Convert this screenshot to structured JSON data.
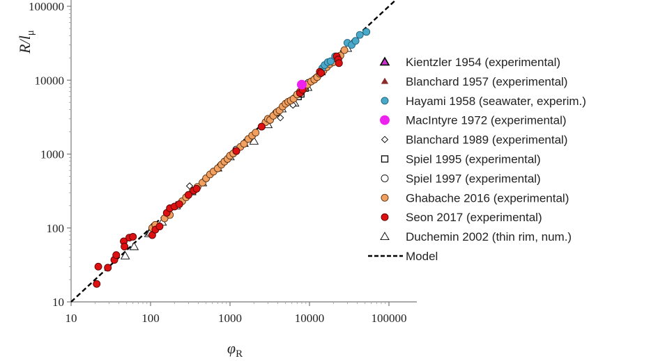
{
  "chart_data": {
    "type": "scatter",
    "xscale": "log",
    "yscale": "log",
    "xlim": [
      10,
      100000
    ],
    "ylim": [
      10,
      100000
    ],
    "xticks": [
      "10",
      "100",
      "1000",
      "10000",
      "100000"
    ],
    "yticks": [
      "10",
      "100",
      "1000",
      "10000",
      "100000"
    ],
    "xticks_values": [
      10,
      100,
      1000,
      10000,
      100000
    ],
    "yticks_values": [
      10,
      100,
      1000,
      10000,
      100000
    ],
    "xlabel": {
      "main": "φ",
      "sub": "R"
    },
    "ylabel": {
      "main": "R/l",
      "sub": "μ"
    },
    "grid": false,
    "legend_position": "right",
    "model": {
      "name": "Model",
      "slope": 1,
      "coef": 1
    },
    "series": [
      {
        "name": "Kientzler 1954 (experimental)",
        "marker": "triangle",
        "fill": "#cc33cc",
        "stroke": "#000000",
        "points": []
      },
      {
        "name": "Blanchard 1957 (experimental)",
        "marker": "triangle-small",
        "fill": "#8b2a2a",
        "stroke": "#8b2a2a",
        "points": []
      },
      {
        "name": "Hayami 1958 (seawater, experim.)",
        "marker": "circle",
        "fill": "#4aa8c8",
        "stroke": "#1d5f7a",
        "points": [
          [
            14500,
            14500
          ],
          [
            15500,
            16000
          ],
          [
            17000,
            17500
          ],
          [
            18500,
            18000
          ],
          [
            21000,
            21000
          ],
          [
            30000,
            32000
          ],
          [
            34000,
            30000
          ],
          [
            38000,
            34000
          ],
          [
            43000,
            41000
          ],
          [
            52000,
            45000
          ]
        ]
      },
      {
        "name": "MacIntyre 1972 (experimental)",
        "marker": "circle-large",
        "fill": "#ee22ee",
        "stroke": "#ee22ee",
        "points": [
          [
            8000,
            8700
          ]
        ]
      },
      {
        "name": "Blanchard 1989 (experimental)",
        "marker": "diamond",
        "fill": "#ffffff",
        "stroke": "#000000",
        "points": [
          [
            310,
            370
          ],
          [
            1900,
            1700
          ],
          [
            4300,
            3100
          ],
          [
            6200,
            4600
          ],
          [
            9000,
            8100
          ]
        ]
      },
      {
        "name": "Spiel 1995 (experimental)",
        "marker": "square",
        "fill": "#ffffff",
        "stroke": "#000000",
        "points": [
          [
            7200,
            6000
          ],
          [
            7800,
            6500
          ],
          [
            8800,
            7800
          ]
        ]
      },
      {
        "name": "Spiel 1997 (experimental)",
        "marker": "circle-open",
        "fill": "#ffffff",
        "stroke": "#000000",
        "points": [
          [
            110,
            105
          ],
          [
            1200,
            1150
          ],
          [
            3800,
            3600
          ],
          [
            9700,
            9200
          ]
        ]
      },
      {
        "name": "Ghabache 2016 (experimental)",
        "marker": "circle",
        "fill": "#f0a060",
        "stroke": "#5a3010",
        "points": [
          [
            105,
            100
          ],
          [
            115,
            110
          ],
          [
            150,
            135
          ],
          [
            175,
            150
          ],
          [
            250,
            230
          ],
          [
            280,
            260
          ],
          [
            340,
            320
          ],
          [
            390,
            360
          ],
          [
            450,
            410
          ],
          [
            500,
            470
          ],
          [
            560,
            530
          ],
          [
            620,
            580
          ],
          [
            700,
            640
          ],
          [
            780,
            720
          ],
          [
            850,
            790
          ],
          [
            930,
            860
          ],
          [
            1000,
            950
          ],
          [
            1100,
            1020
          ],
          [
            1200,
            1100
          ],
          [
            1350,
            1250
          ],
          [
            1500,
            1380
          ],
          [
            1700,
            1600
          ],
          [
            1900,
            1780
          ],
          [
            2100,
            1950
          ],
          [
            2500,
            2350
          ],
          [
            2800,
            2700
          ],
          [
            3000,
            3000
          ],
          [
            3200,
            2900
          ],
          [
            3500,
            3300
          ],
          [
            3900,
            3700
          ],
          [
            4200,
            3900
          ],
          [
            4600,
            4400
          ],
          [
            5000,
            4800
          ],
          [
            5400,
            5100
          ],
          [
            5800,
            5300
          ],
          [
            6300,
            5600
          ],
          [
            7000,
            6400
          ],
          [
            7600,
            7000
          ],
          [
            8500,
            7700
          ],
          [
            9400,
            8700
          ],
          [
            10500,
            9600
          ],
          [
            11500,
            10200
          ],
          [
            12500,
            11000
          ],
          [
            13500,
            12200
          ],
          [
            15000,
            13500
          ],
          [
            16500,
            15000
          ],
          [
            18000,
            16500
          ],
          [
            20000,
            17500
          ],
          [
            22000,
            19500
          ],
          [
            24500,
            21500
          ],
          [
            27500,
            25500
          ]
        ]
      },
      {
        "name": "Seon 2017 (experimental)",
        "marker": "circle",
        "fill": "#dd1111",
        "stroke": "#550000",
        "points": [
          [
            21,
            17.5
          ],
          [
            22,
            30
          ],
          [
            29,
            29
          ],
          [
            35,
            37
          ],
          [
            37,
            43
          ],
          [
            46,
            66
          ],
          [
            47,
            56
          ],
          [
            54,
            74
          ],
          [
            60,
            76
          ],
          [
            105,
            80
          ],
          [
            115,
            95
          ],
          [
            130,
            105
          ],
          [
            160,
            160
          ],
          [
            175,
            185
          ],
          [
            200,
            195
          ],
          [
            230,
            210
          ],
          [
            300,
            280
          ],
          [
            350,
            320
          ],
          [
            380,
            340
          ],
          [
            1200,
            1100
          ],
          [
            2500,
            2350
          ],
          [
            7600,
            6700
          ],
          [
            8200,
            7400
          ],
          [
            13500,
            13000
          ],
          [
            14000,
            12500
          ],
          [
            22000,
            21000
          ],
          [
            23000,
            19000
          ],
          [
            23500,
            17000
          ]
        ]
      },
      {
        "name": "Duchemin 2002 (thin rim, num.)",
        "marker": "triangle-open",
        "fill": "#ffffff",
        "stroke": "#000000",
        "points": [
          [
            48,
            42
          ],
          [
            62,
            56
          ],
          [
            95,
            84
          ],
          [
            100,
            88
          ],
          [
            140,
            120
          ],
          [
            210,
            200
          ],
          [
            330,
            310
          ],
          [
            450,
            410
          ],
          [
            700,
            650
          ],
          [
            1000,
            920
          ],
          [
            1500,
            1400
          ],
          [
            2000,
            1500
          ],
          [
            3000,
            2500
          ],
          [
            4500,
            4100
          ],
          [
            6500,
            4900
          ],
          [
            9500,
            8000
          ],
          [
            14000,
            13000
          ],
          [
            20000,
            18000
          ],
          [
            30000,
            27000
          ]
        ]
      }
    ]
  }
}
